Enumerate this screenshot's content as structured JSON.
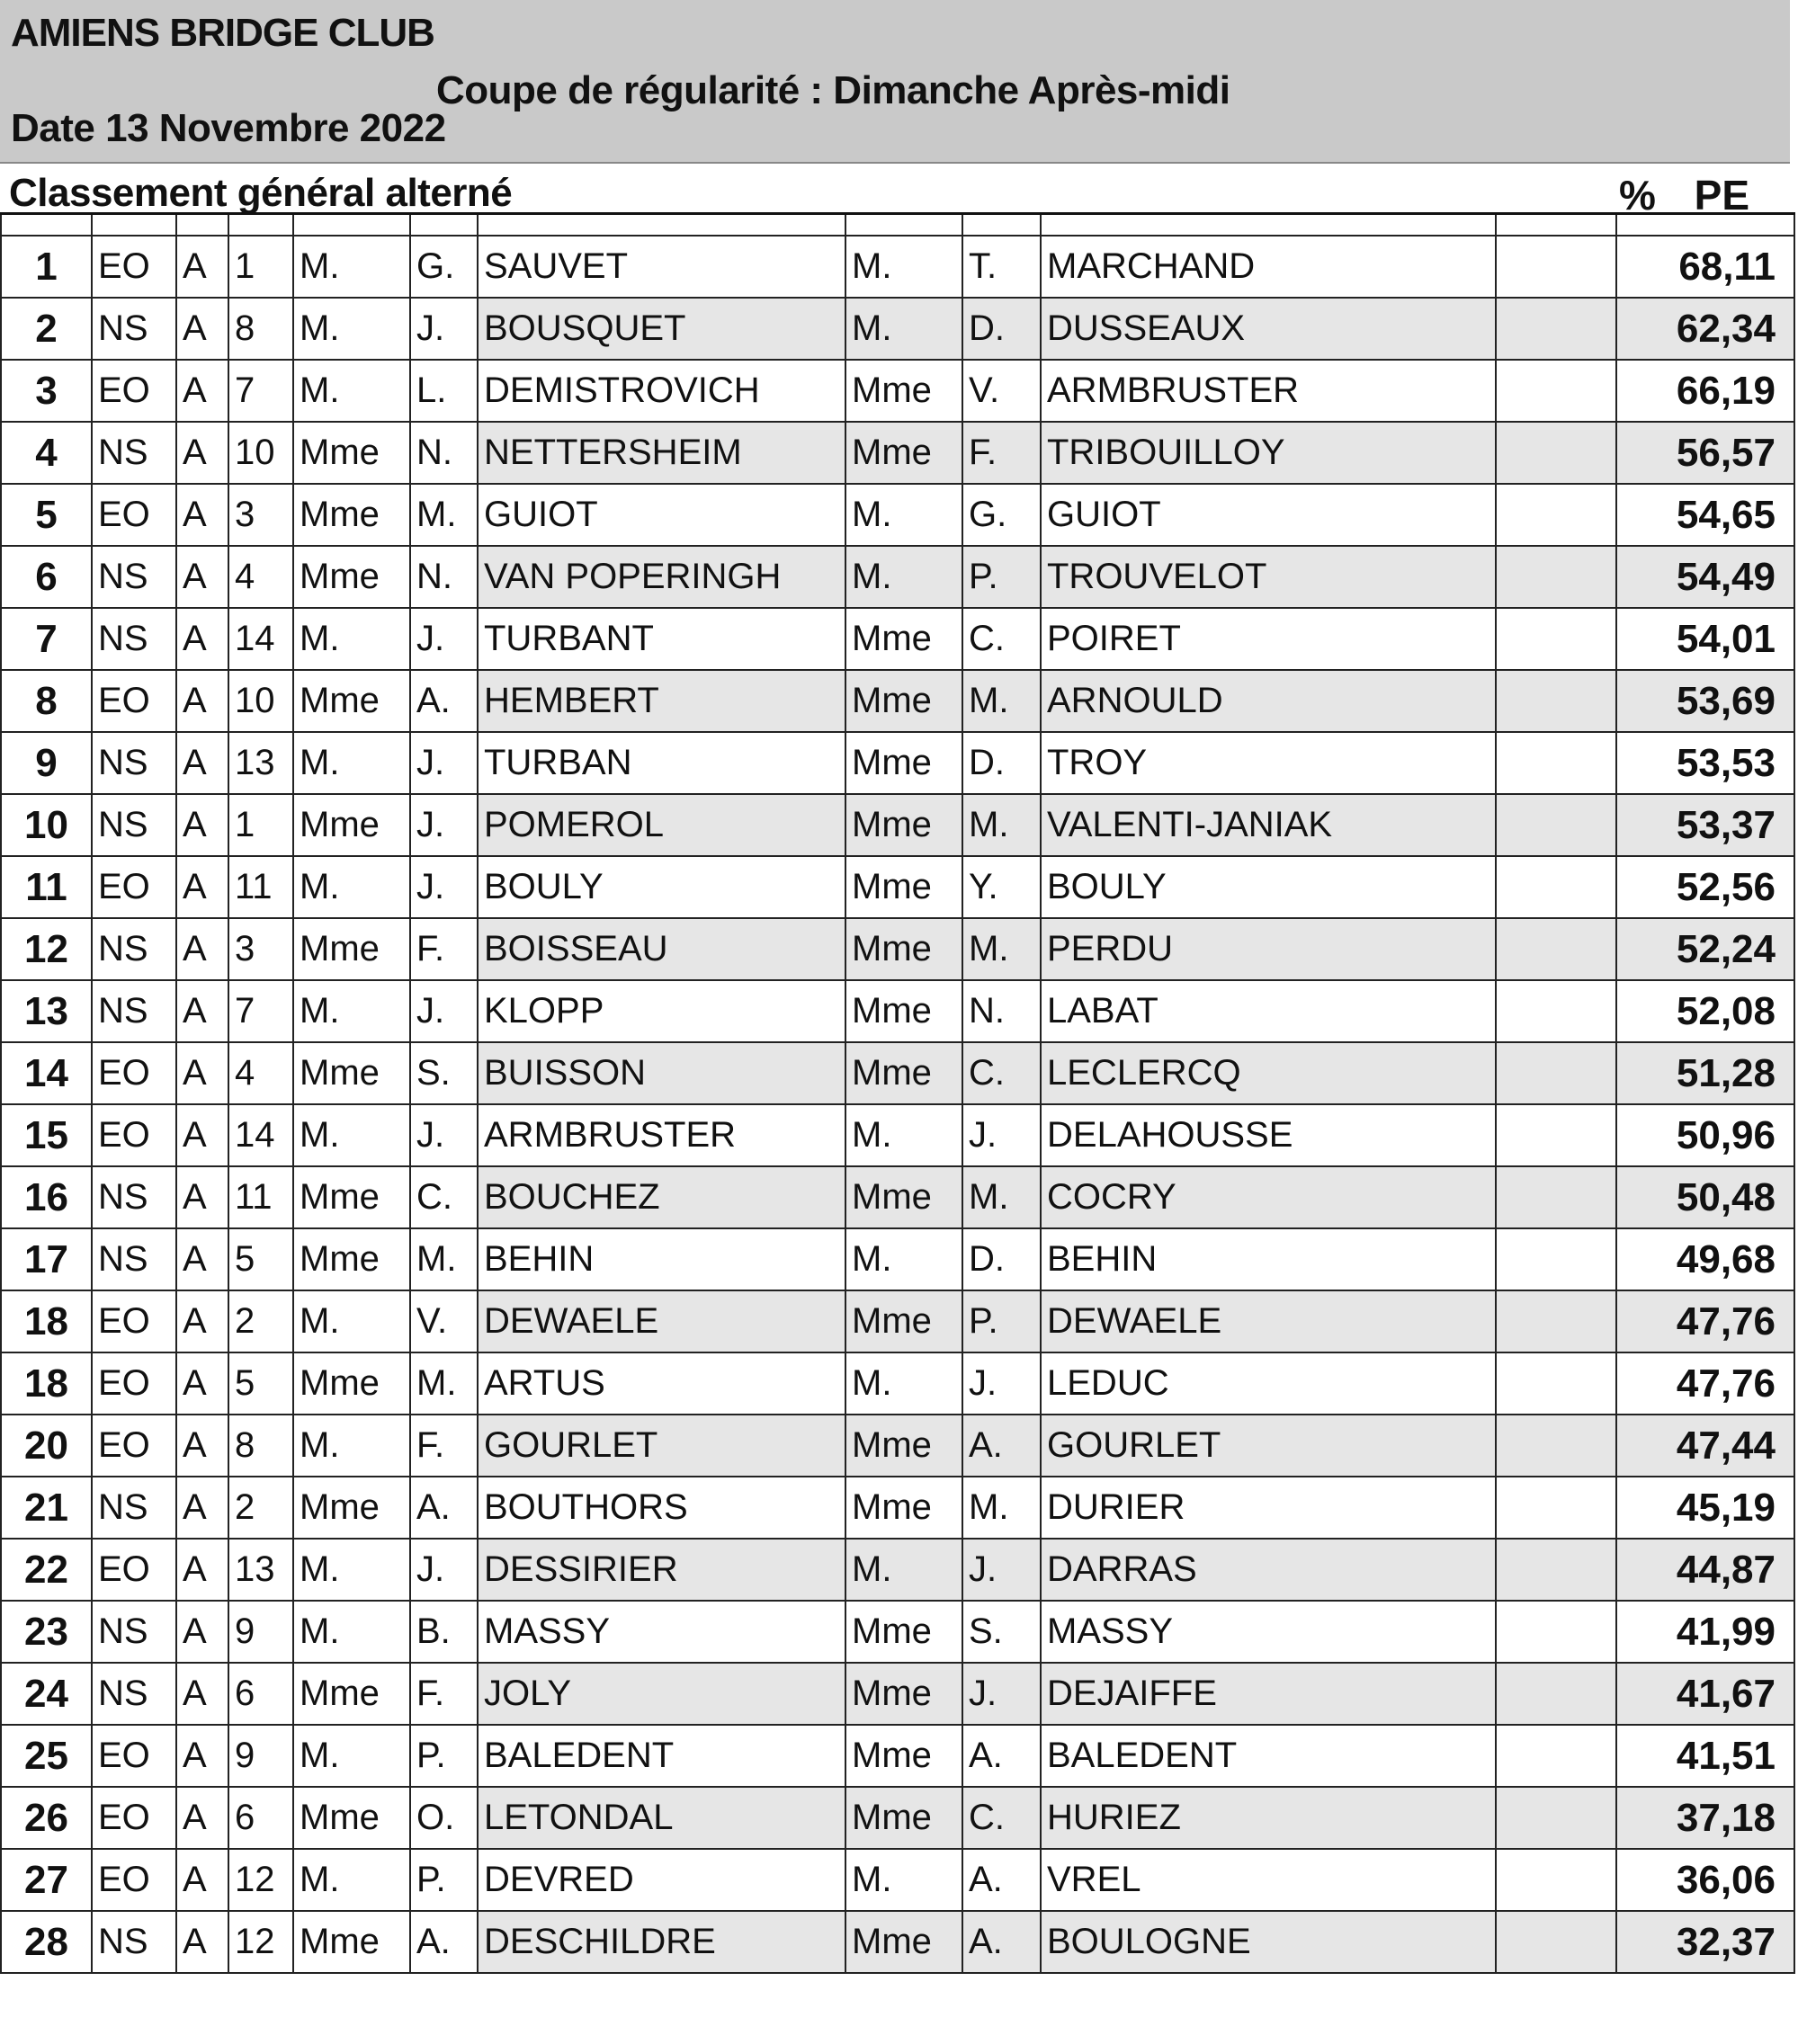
{
  "header": {
    "club": "AMIENS BRIDGE CLUB",
    "event": "Coupe de régularité : Dimanche  Après-midi",
    "date": "Date  13 Novembre 2022"
  },
  "subtitle": "Classement général alterné",
  "column_header_pe": "%  PE",
  "rows": [
    [
      "1",
      "EO",
      "A",
      "1",
      "M.",
      "G.",
      "SAUVET",
      "M.",
      "T.",
      "MARCHAND",
      "68,11"
    ],
    [
      "2",
      "NS",
      "A",
      "8",
      "M.",
      "J.",
      "BOUSQUET",
      "M.",
      "D.",
      "DUSSEAUX",
      "62,34"
    ],
    [
      "3",
      "EO",
      "A",
      "7",
      "M.",
      "L.",
      "DEMISTROVICH",
      "Mme",
      "V.",
      "ARMBRUSTER",
      "66,19"
    ],
    [
      "4",
      "NS",
      "A",
      "10",
      "Mme",
      "N.",
      "NETTERSHEIM",
      "Mme",
      "F.",
      "TRIBOUILLOY",
      "56,57"
    ],
    [
      "5",
      "EO",
      "A",
      "3",
      "Mme",
      "M.",
      "GUIOT",
      "M.",
      "G.",
      "GUIOT",
      "54,65"
    ],
    [
      "6",
      "NS",
      "A",
      "4",
      "Mme",
      "N.",
      "VAN POPERINGH",
      "M.",
      "P.",
      "TROUVELOT",
      "54,49"
    ],
    [
      "7",
      "NS",
      "A",
      "14",
      "M.",
      "J.",
      "TURBANT",
      "Mme",
      "C.",
      "POIRET",
      "54,01"
    ],
    [
      "8",
      "EO",
      "A",
      "10",
      "Mme",
      "A.",
      "HEMBERT",
      "Mme",
      "M.",
      "ARNOULD",
      "53,69"
    ],
    [
      "9",
      "NS",
      "A",
      "13",
      "M.",
      "J.",
      "TURBAN",
      "Mme",
      "D.",
      "TROY",
      "53,53"
    ],
    [
      "10",
      "NS",
      "A",
      "1",
      "Mme",
      "J.",
      "POMEROL",
      "Mme",
      "M.",
      "VALENTI-JANIAK",
      "53,37"
    ],
    [
      "11",
      "EO",
      "A",
      "11",
      "M.",
      "J.",
      "BOULY",
      "Mme",
      "Y.",
      "BOULY",
      "52,56"
    ],
    [
      "12",
      "NS",
      "A",
      "3",
      "Mme",
      "F.",
      "BOISSEAU",
      "Mme",
      "M.",
      "PERDU",
      "52,24"
    ],
    [
      "13",
      "NS",
      "A",
      "7",
      "M.",
      "J.",
      "KLOPP",
      "Mme",
      "N.",
      "LABAT",
      "52,08"
    ],
    [
      "14",
      "EO",
      "A",
      "4",
      "Mme",
      "S.",
      "BUISSON",
      "Mme",
      "C.",
      "LECLERCQ",
      "51,28"
    ],
    [
      "15",
      "EO",
      "A",
      "14",
      "M.",
      "J.",
      "ARMBRUSTER",
      "M.",
      "J.",
      "DELAHOUSSE",
      "50,96"
    ],
    [
      "16",
      "NS",
      "A",
      "11",
      "Mme",
      "C.",
      "BOUCHEZ",
      "Mme",
      "M.",
      "COCRY",
      "50,48"
    ],
    [
      "17",
      "NS",
      "A",
      "5",
      "Mme",
      "M.",
      "BEHIN",
      "M.",
      "D.",
      "BEHIN",
      "49,68"
    ],
    [
      "18",
      "EO",
      "A",
      "2",
      "M.",
      "V.",
      "DEWAELE",
      "Mme",
      "P.",
      "DEWAELE",
      "47,76"
    ],
    [
      "18",
      "EO",
      "A",
      "5",
      "Mme",
      "M.",
      "ARTUS",
      "M.",
      "J.",
      "LEDUC",
      "47,76"
    ],
    [
      "20",
      "EO",
      "A",
      "8",
      "M.",
      "F.",
      "GOURLET",
      "Mme",
      "A.",
      "GOURLET",
      "47,44"
    ],
    [
      "21",
      "NS",
      "A",
      "2",
      "Mme",
      "A.",
      "BOUTHORS",
      "Mme",
      "M.",
      "DURIER",
      "45,19"
    ],
    [
      "22",
      "EO",
      "A",
      "13",
      "M.",
      "J.",
      "DESSIRIER",
      "M.",
      "J.",
      "DARRAS",
      "44,87"
    ],
    [
      "23",
      "NS",
      "A",
      "9",
      "M.",
      "B.",
      "MASSY",
      "Mme",
      "S.",
      "MASSY",
      "41,99"
    ],
    [
      "24",
      "NS",
      "A",
      "6",
      "Mme",
      "F.",
      "JOLY",
      "Mme",
      "J.",
      "DEJAIFFE",
      "41,67"
    ],
    [
      "25",
      "EO",
      "A",
      "9",
      "M.",
      "P.",
      "BALEDENT",
      "Mme",
      "A.",
      "BALEDENT",
      "41,51"
    ],
    [
      "26",
      "EO",
      "A",
      "6",
      "Mme",
      "O.",
      "LETONDAL",
      "Mme",
      "C.",
      "HURIEZ",
      "37,18"
    ],
    [
      "27",
      "EO",
      "A",
      "12",
      "M.",
      "P.",
      "DEVRED",
      "M.",
      "A.",
      "VREL",
      "36,06"
    ],
    [
      "28",
      "NS",
      "A",
      "12",
      "Mme",
      "A.",
      "DESCHILDRE",
      "Mme",
      "A.",
      "BOULOGNE",
      "32,37"
    ]
  ]
}
